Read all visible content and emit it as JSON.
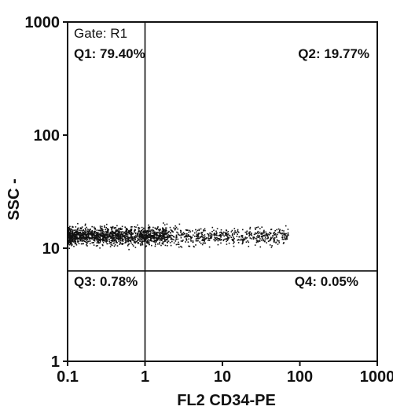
{
  "chart_data": {
    "type": "scatter",
    "title": "",
    "xlabel": "FL2  CD34-PE",
    "ylabel": "SSC  -",
    "xscale": "log",
    "yscale": "log",
    "xlim": [
      0.1,
      1000
    ],
    "ylim": [
      1,
      1000
    ],
    "x_ticks": [
      "0.1",
      "1",
      "10",
      "100",
      "1000"
    ],
    "y_ticks": [
      "1",
      "10",
      "100",
      "1000"
    ],
    "gate_label": "Gate: R1",
    "quadrant_divider": {
      "x": 1,
      "y": 6.3
    },
    "quadrants": [
      {
        "label": "Q1: 79.40%",
        "name": "Q1",
        "percent": 79.4,
        "position": "top-left"
      },
      {
        "label": "Q2: 19.77%",
        "name": "Q2",
        "percent": 19.77,
        "position": "top-right"
      },
      {
        "label": "Q3: 0.78%",
        "name": "Q3",
        "percent": 0.78,
        "position": "bottom-left"
      },
      {
        "label": "Q4: 0.05%",
        "name": "Q4",
        "percent": 0.05,
        "position": "bottom-right"
      }
    ],
    "point_cloud": {
      "n_points": 2000,
      "x_range": [
        0.1,
        70
      ],
      "y_range": [
        5.5,
        40
      ],
      "y_center": 13,
      "note_color": "#111111"
    },
    "grid": false,
    "legend": "none"
  }
}
